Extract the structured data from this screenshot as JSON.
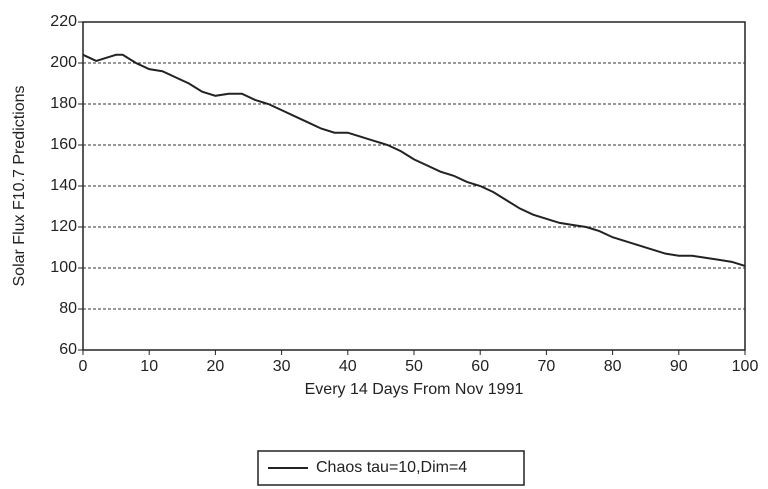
{
  "chart_data": {
    "type": "line",
    "x_label": "Every 14 Days From Nov 1991",
    "y_label": "Solar Flux F10.7 Predictions",
    "x": [
      0,
      2,
      4,
      5,
      6,
      8,
      10,
      12,
      14,
      16,
      18,
      20,
      22,
      24,
      26,
      28,
      30,
      32,
      34,
      36,
      38,
      40,
      42,
      44,
      46,
      48,
      50,
      52,
      54,
      56,
      58,
      60,
      62,
      64,
      66,
      68,
      70,
      72,
      74,
      76,
      78,
      80,
      82,
      84,
      86,
      88,
      90,
      92,
      94,
      96,
      98,
      100
    ],
    "series": [
      {
        "name": "Chaos tau=10,Dim=4",
        "color": "#222222",
        "values": [
          204,
          201,
          203,
          204,
          204,
          200,
          197,
          196,
          193,
          190,
          186,
          184,
          185,
          185,
          182,
          180,
          177,
          174,
          171,
          168,
          166,
          166,
          164,
          162,
          160,
          157,
          153,
          150,
          147,
          145,
          142,
          140,
          137,
          133,
          129,
          126,
          124,
          122,
          121,
          120,
          118,
          115,
          113,
          111,
          109,
          107,
          106,
          106,
          105,
          104,
          103,
          101
        ]
      }
    ],
    "xlim": [
      0,
      100
    ],
    "xticks": [
      0,
      10,
      20,
      30,
      40,
      50,
      60,
      70,
      80,
      90,
      100
    ],
    "ylim": [
      60,
      220
    ],
    "yticks": [
      60,
      80,
      100,
      120,
      140,
      160,
      180,
      200,
      220
    ],
    "grid": true,
    "legend": "bottom"
  }
}
